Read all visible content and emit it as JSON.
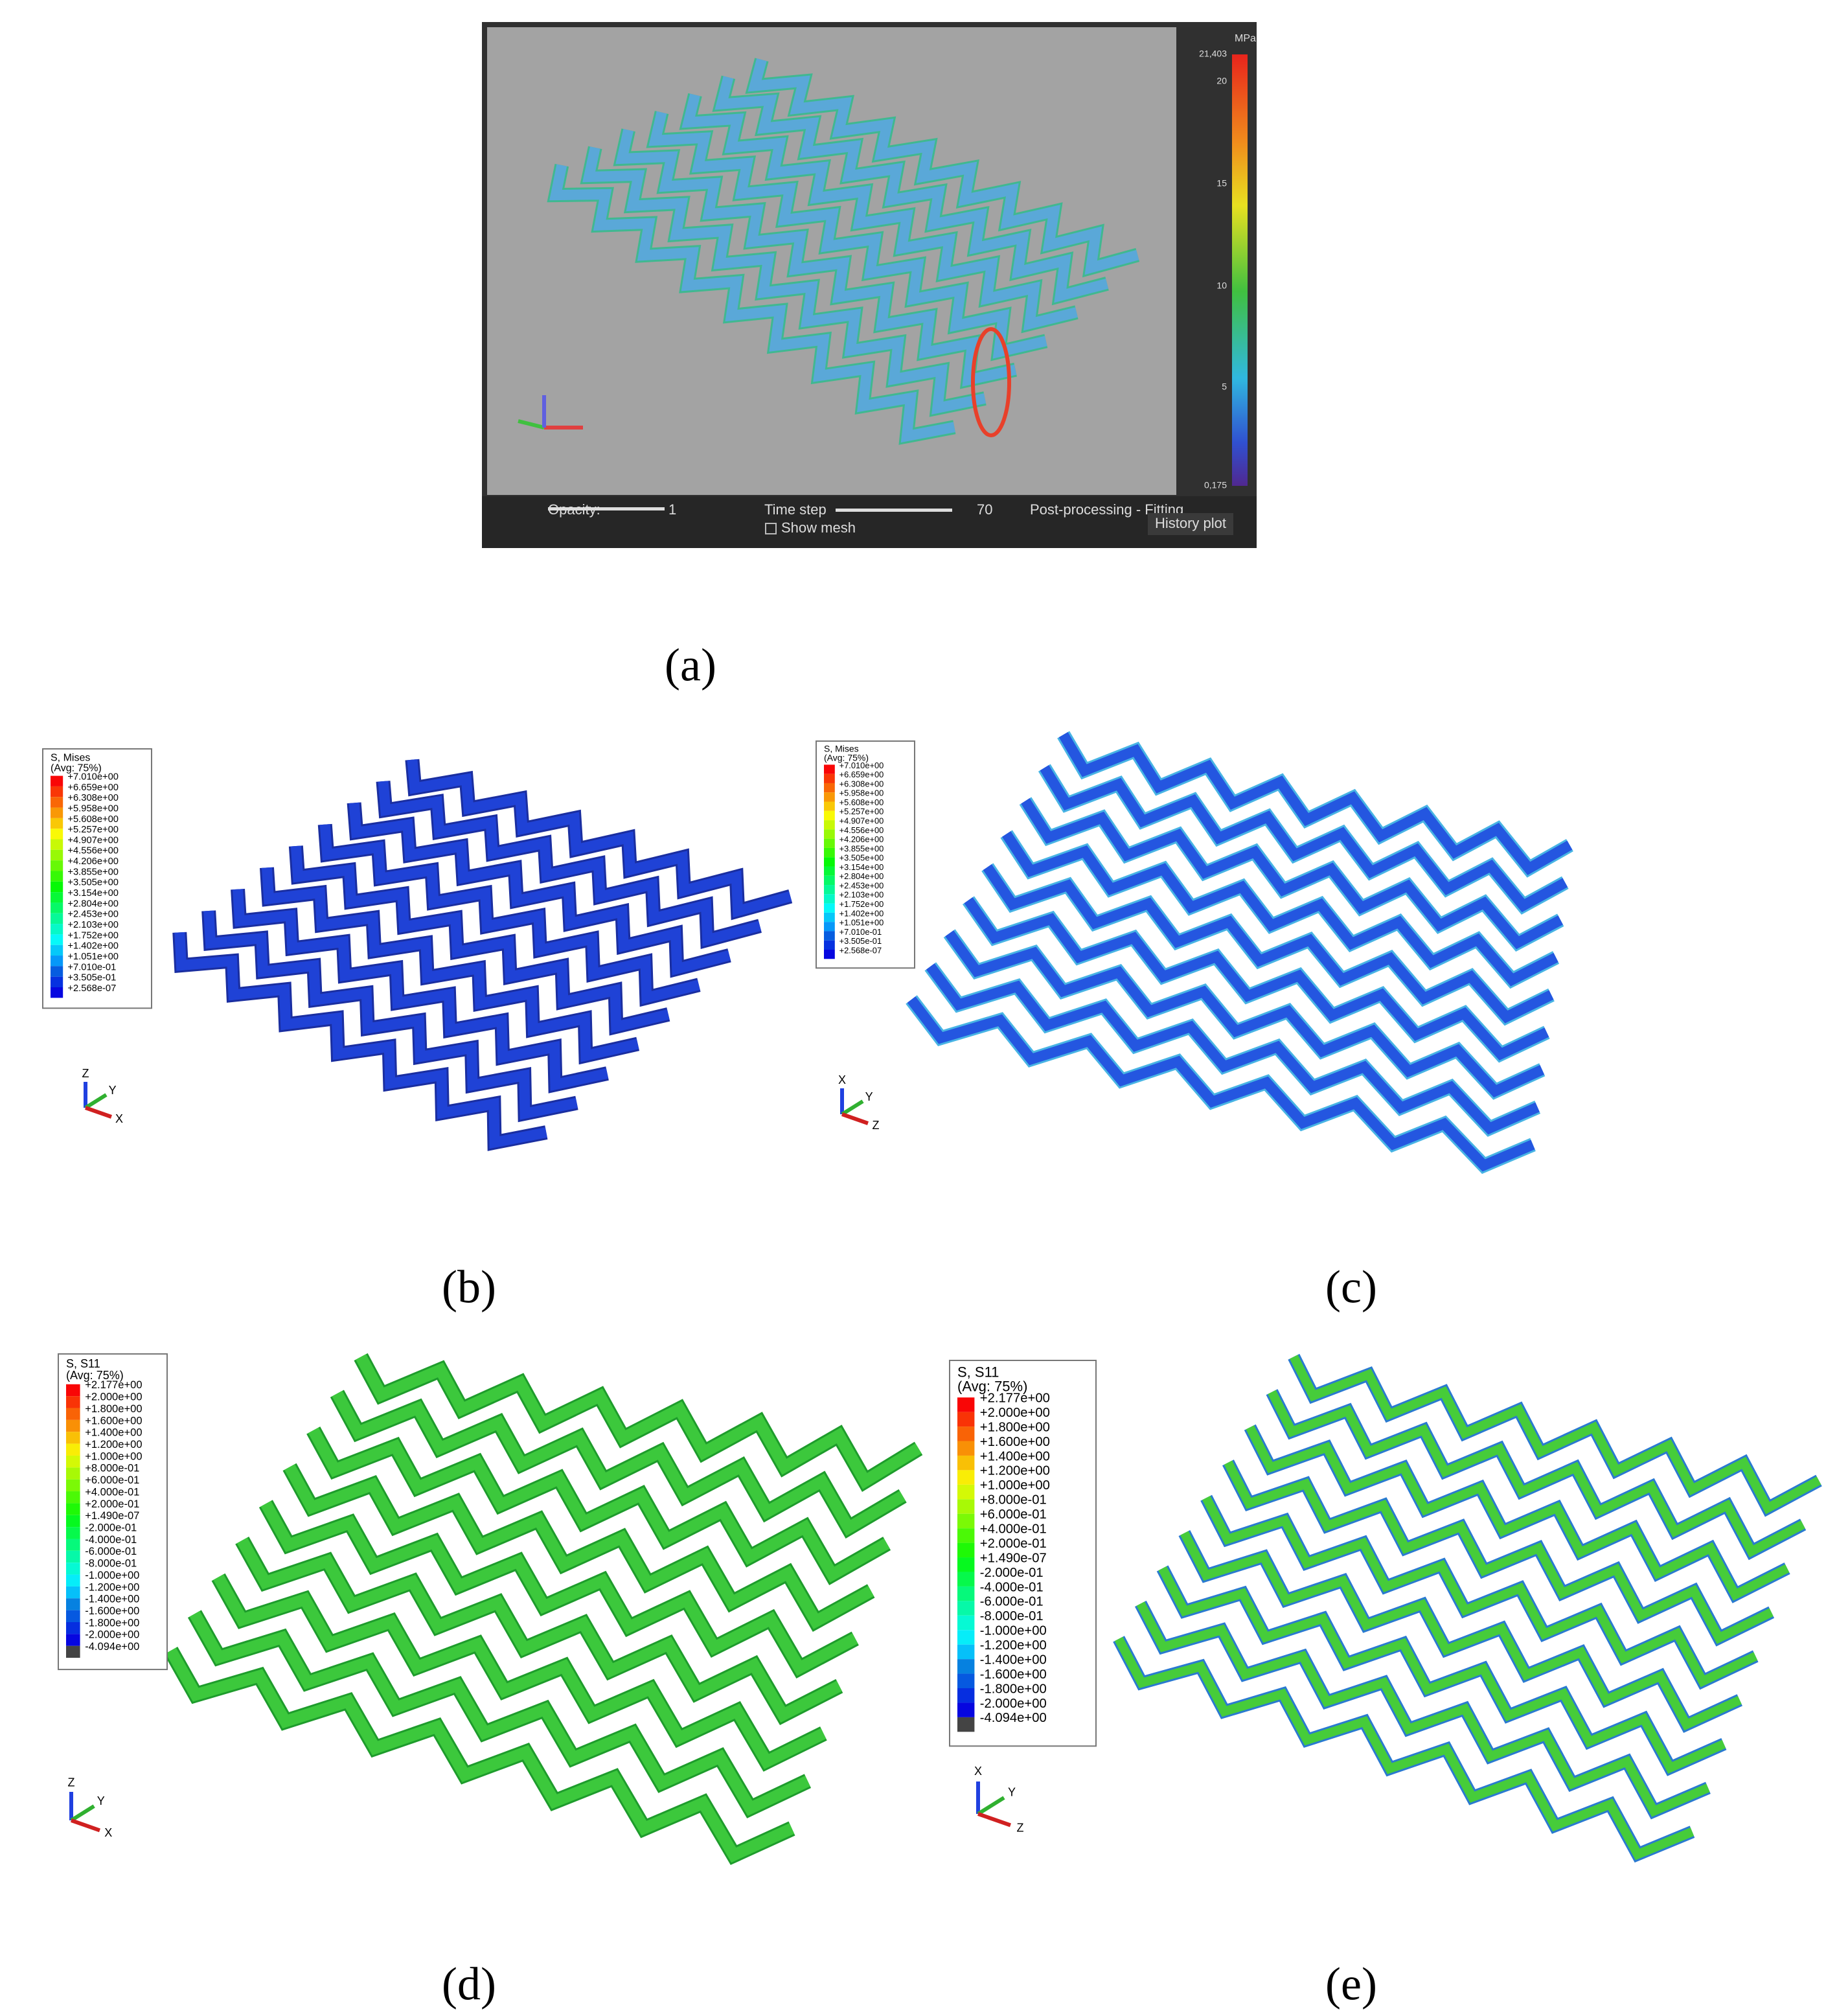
{
  "panel_a": {
    "label": "(a)",
    "colorbar_unit": "MPa",
    "colorbar_labels": [
      "21,403",
      "20",
      "15",
      "10",
      "5",
      "0,175"
    ],
    "opacity_label": "Opacity:",
    "opacity_value": "1",
    "time_step_label": "Time step",
    "time_step_value": "70",
    "mode": "Post-processing - Fitting",
    "show_mesh": "Show mesh",
    "history_button": "History plot"
  },
  "panel_b": {
    "label": "(b)",
    "legend_title": "S, Mises",
    "legend_subtitle": "(Avg: 75%)",
    "legend_values": [
      "+7.010e+00",
      "+6.659e+00",
      "+6.308e+00",
      "+5.958e+00",
      "+5.608e+00",
      "+5.257e+00",
      "+4.907e+00",
      "+4.556e+00",
      "+4.206e+00",
      "+3.855e+00",
      "+3.505e+00",
      "+3.154e+00",
      "+2.804e+00",
      "+2.453e+00",
      "+2.103e+00",
      "+1.752e+00",
      "+1.402e+00",
      "+1.051e+00",
      "+7.010e-01",
      "+3.505e-01",
      "+2.568e-07"
    ],
    "triad": [
      "Z",
      "Y",
      "X"
    ]
  },
  "panel_c": {
    "label": "(c)",
    "legend_title": "S, Mises",
    "legend_subtitle": "(Avg: 75%)",
    "legend_values": [
      "+7.010e+00",
      "+6.659e+00",
      "+6.308e+00",
      "+5.958e+00",
      "+5.608e+00",
      "+5.257e+00",
      "+4.907e+00",
      "+4.556e+00",
      "+4.206e+00",
      "+3.855e+00",
      "+3.505e+00",
      "+3.154e+00",
      "+2.804e+00",
      "+2.453e+00",
      "+2.103e+00",
      "+1.752e+00",
      "+1.402e+00",
      "+1.051e+00",
      "+7.010e-01",
      "+3.505e-01",
      "+2.568e-07"
    ],
    "triad": [
      "X",
      "Y",
      "Z"
    ]
  },
  "panel_d": {
    "label": "(d)",
    "legend_title": "S, S11",
    "legend_subtitle": "(Avg: 75%)",
    "legend_values": [
      "+2.177e+00",
      "+2.000e+00",
      "+1.800e+00",
      "+1.600e+00",
      "+1.400e+00",
      "+1.200e+00",
      "+1.000e+00",
      "+8.000e-01",
      "+6.000e-01",
      "+4.000e-01",
      "+2.000e-01",
      "+1.490e-07",
      "-2.000e-01",
      "-4.000e-01",
      "-6.000e-01",
      "-8.000e-01",
      "-1.000e+00",
      "-1.200e+00",
      "-1.400e+00",
      "-1.600e+00",
      "-1.800e+00",
      "-2.000e+00",
      "-4.094e+00"
    ],
    "triad": [
      "Z",
      "Y",
      "X"
    ]
  },
  "panel_e": {
    "label": "(e)",
    "legend_title": "S, S11",
    "legend_subtitle": "(Avg: 75%)",
    "legend_values": [
      "+2.177e+00",
      "+2.000e+00",
      "+1.800e+00",
      "+1.600e+00",
      "+1.400e+00",
      "+1.200e+00",
      "+1.000e+00",
      "+8.000e-01",
      "+6.000e-01",
      "+4.000e-01",
      "+2.000e-01",
      "+1.490e-07",
      "-2.000e-01",
      "-4.000e-01",
      "-6.000e-01",
      "-8.000e-01",
      "-1.000e+00",
      "-1.200e+00",
      "-1.400e+00",
      "-1.600e+00",
      "-1.800e+00",
      "-2.000e+00",
      "-4.094e+00"
    ],
    "triad": [
      "X",
      "Y",
      "Z"
    ]
  }
}
